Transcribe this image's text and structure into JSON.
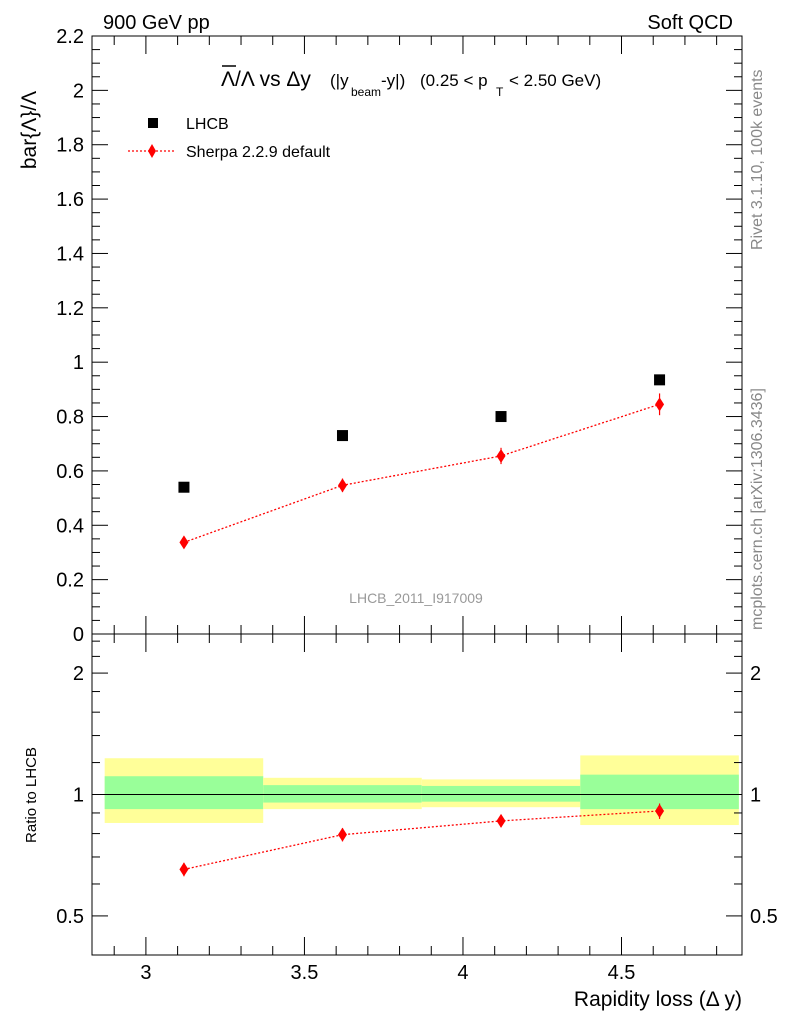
{
  "header": {
    "left": "900 GeV pp",
    "right": "Soft QCD"
  },
  "side_labels": {
    "rivet": "Rivet 3.1.10,  100k events",
    "source": "mcplots.cern.ch [arXiv:1306.3436]"
  },
  "colors": {
    "lhcb": "#000000",
    "sherpa": "#ff0000",
    "band_outer": "#ffff99",
    "band_inner": "#99ff99"
  },
  "chart_data": [
    {
      "type": "scatter",
      "panel": "main",
      "title_parts": {
        "main": "Λ/Λ vs Δy",
        "paren_open": "(|y",
        "beam_sub": "beam",
        "paren_close": "-y|)",
        "range_open": "(0.25 < p",
        "pt_sub": "T",
        "range_close": "< 2.50 GeV)"
      },
      "ylabel": "bar{Λ}/Λ",
      "ylim": [
        0,
        2.2
      ],
      "xlim": [
        2.83,
        4.88
      ],
      "yticks": [
        0,
        0.2,
        0.4,
        0.6,
        0.8,
        1,
        1.2,
        1.4,
        1.6,
        1.8,
        2,
        2.2
      ],
      "yticklabels": [
        "0",
        "0.2",
        "0.4",
        "0.6",
        "0.8",
        "1",
        "1.2",
        "1.4",
        "1.6",
        "1.8",
        "2",
        "2.2"
      ],
      "legend_position": "top-left",
      "watermark": "LHCB_2011_I917009",
      "series": [
        {
          "name": "LHCB",
          "style": "square-marker",
          "x": [
            3.12,
            3.62,
            4.12,
            4.62
          ],
          "y": [
            0.54,
            0.73,
            0.8,
            0.935
          ]
        },
        {
          "name": "Sherpa 2.2.9 default",
          "style": "diamond-dotted-line",
          "x": [
            3.12,
            3.62,
            4.12,
            4.62
          ],
          "y": [
            0.337,
            0.547,
            0.655,
            0.845
          ],
          "yerr": [
            0.014,
            0.025,
            0.03,
            0.04
          ]
        }
      ]
    },
    {
      "type": "scatter",
      "panel": "ratio",
      "ylabel": "Ratio to LHCB",
      "xlabel": "Rapidity loss (Δ y)",
      "xlim": [
        2.83,
        4.88
      ],
      "ylog": true,
      "ylim": [
        0.4,
        2.5
      ],
      "xticks": [
        3,
        3.5,
        4,
        4.5
      ],
      "xticklabels": [
        "3",
        "3.5",
        "4",
        "4.5"
      ],
      "yticks": [
        0.5,
        1,
        2
      ],
      "yticklabels": [
        "0.5",
        "1",
        "2"
      ],
      "reference_line": 1,
      "bands": [
        {
          "x0": 2.87,
          "x1": 3.37,
          "outer": [
            0.85,
            1.23
          ],
          "inner": [
            0.92,
            1.11
          ]
        },
        {
          "x0": 3.37,
          "x1": 3.87,
          "outer": [
            0.92,
            1.1
          ],
          "inner": [
            0.955,
            1.055
          ]
        },
        {
          "x0": 3.87,
          "x1": 4.37,
          "outer": [
            0.93,
            1.09
          ],
          "inner": [
            0.96,
            1.05
          ]
        },
        {
          "x0": 4.37,
          "x1": 4.87,
          "outer": [
            0.84,
            1.25
          ],
          "inner": [
            0.92,
            1.12
          ]
        }
      ],
      "series": [
        {
          "name": "Sherpa 2.2.9 default",
          "x": [
            3.12,
            3.62,
            4.12,
            4.62
          ],
          "y": [
            0.652,
            0.795,
            0.86,
            0.91
          ],
          "yerr": [
            0.025,
            0.03,
            0.03,
            0.04
          ]
        }
      ]
    }
  ]
}
